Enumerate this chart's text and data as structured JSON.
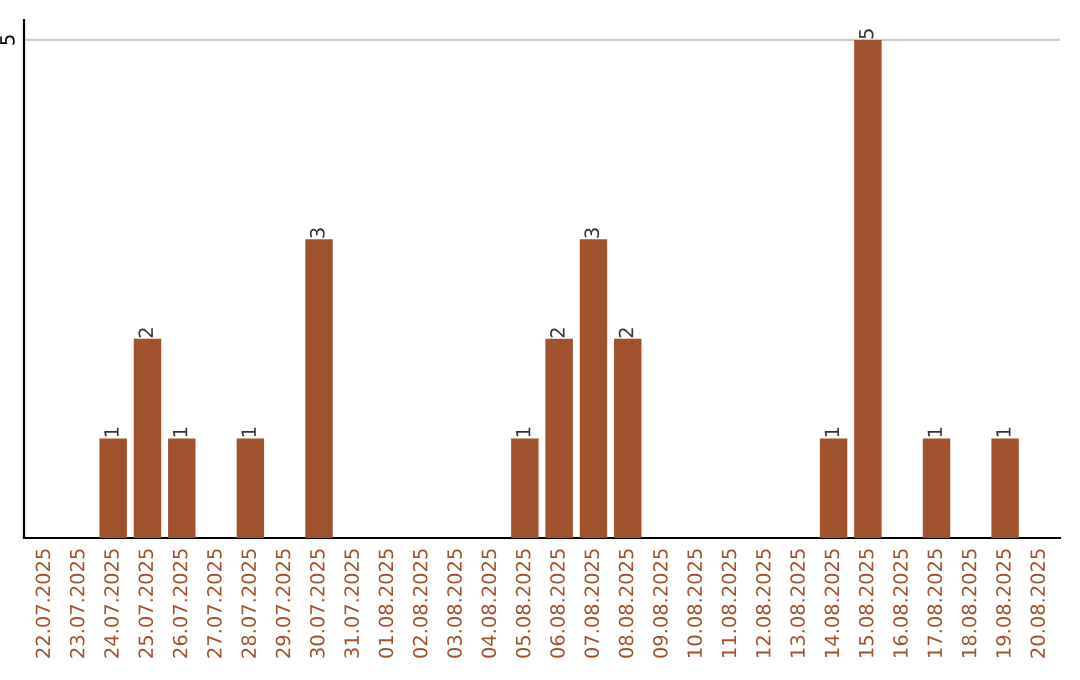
{
  "chart_data": {
    "type": "bar",
    "categories": [
      "22.07.2025",
      "23.07.2025",
      "24.07.2025",
      "25.07.2025",
      "26.07.2025",
      "27.07.2025",
      "28.07.2025",
      "29.07.2025",
      "30.07.2025",
      "31.07.2025",
      "01.08.2025",
      "02.08.2025",
      "03.08.2025",
      "04.08.2025",
      "05.08.2025",
      "06.08.2025",
      "07.08.2025",
      "08.08.2025",
      "09.08.2025",
      "10.08.2025",
      "11.08.2025",
      "12.08.2025",
      "13.08.2025",
      "14.08.2025",
      "15.08.2025",
      "16.08.2025",
      "17.08.2025",
      "18.08.2025",
      "19.08.2025",
      "20.08.2025"
    ],
    "values": [
      0,
      0,
      1,
      2,
      1,
      0,
      1,
      0,
      3,
      0,
      0,
      0,
      0,
      0,
      1,
      2,
      3,
      2,
      0,
      0,
      0,
      0,
      0,
      1,
      5,
      0,
      1,
      0,
      1,
      0
    ],
    "value_labels": [
      null,
      null,
      "1",
      "2",
      "1",
      null,
      "1",
      null,
      "3",
      null,
      null,
      null,
      null,
      null,
      "1",
      "2",
      "3",
      "2",
      null,
      null,
      null,
      null,
      null,
      "1",
      "5",
      null,
      "1",
      null,
      "1",
      null
    ],
    "color": "#a0522d",
    "ylim": [
      0,
      5.2
    ],
    "yticks": [
      5
    ],
    "grid": "y"
  }
}
